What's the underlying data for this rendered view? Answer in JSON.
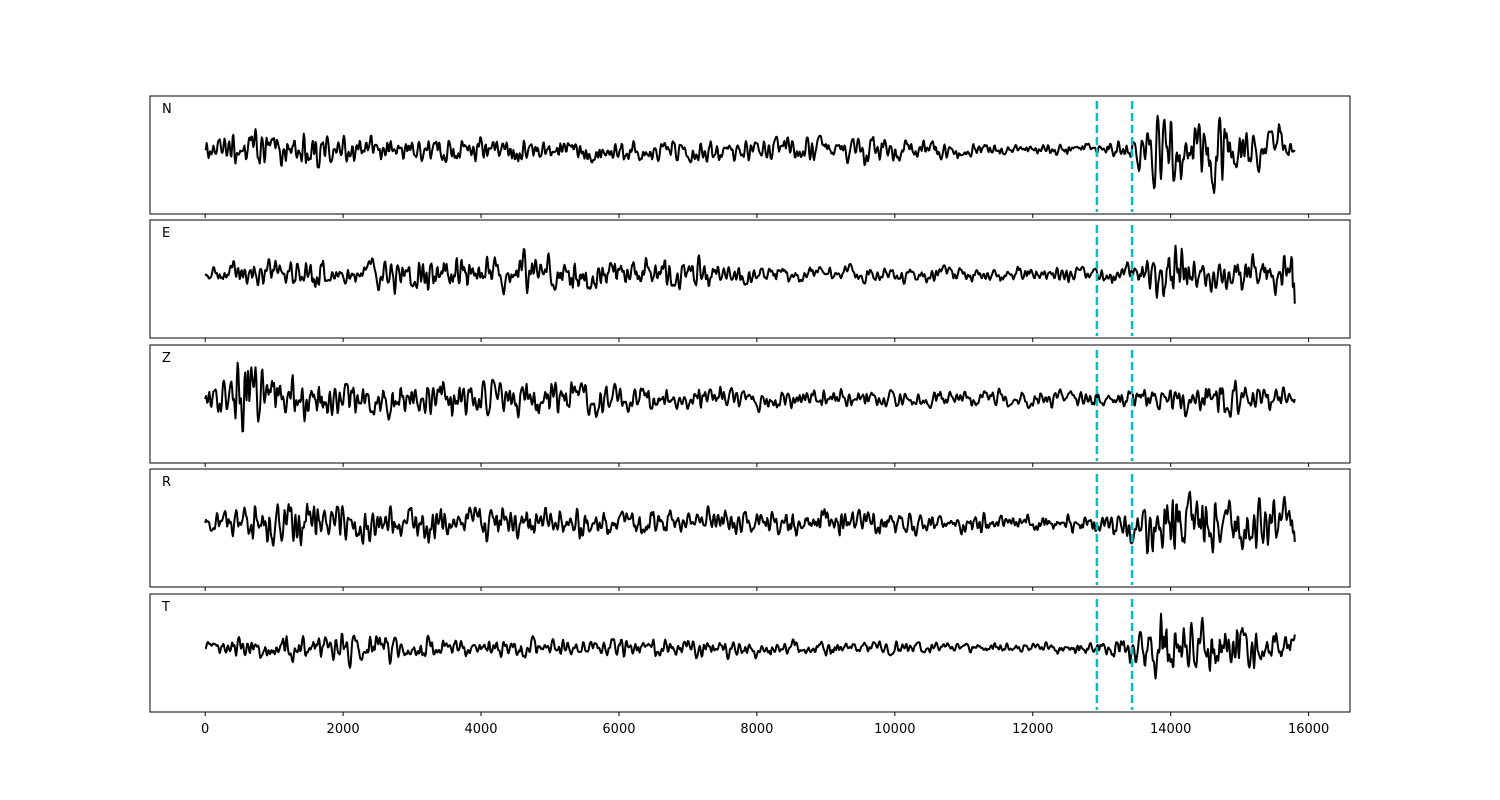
{
  "chart_data": {
    "type": "line",
    "title": "",
    "xlabel": "",
    "ylabel": "",
    "xlim": [
      -800,
      16600
    ],
    "x_ticks": [
      0,
      2000,
      4000,
      6000,
      8000,
      10000,
      12000,
      14000,
      16000
    ],
    "x_tick_labels": [
      "0",
      "2000",
      "4000",
      "6000",
      "8000",
      "10000",
      "12000",
      "14000",
      "16000"
    ],
    "series_x_range": [
      0,
      15800
    ],
    "grid": false,
    "colors": {
      "trace": "#000000",
      "marker": "#00c0c0"
    },
    "vertical_markers": [
      12930,
      13440
    ],
    "panels": [
      {
        "label": "N",
        "envelope": [
          [
            0,
            0.2
          ],
          [
            700,
            0.5
          ],
          [
            1600,
            0.5
          ],
          [
            2100,
            0.3
          ],
          [
            8000,
            0.25
          ],
          [
            9500,
            0.35
          ],
          [
            11000,
            0.2
          ],
          [
            12000,
            0.12
          ],
          [
            12900,
            0.15
          ],
          [
            13400,
            0.25
          ],
          [
            13600,
            0.55
          ],
          [
            13900,
            0.9
          ],
          [
            14300,
            0.55
          ],
          [
            14650,
            0.95
          ],
          [
            15000,
            0.6
          ],
          [
            15600,
            0.5
          ],
          [
            15800,
            0.1
          ]
        ],
        "end_value": 0.0
      },
      {
        "label": "E",
        "envelope": [
          [
            0,
            0.15
          ],
          [
            800,
            0.35
          ],
          [
            2000,
            0.35
          ],
          [
            3100,
            0.5
          ],
          [
            7300,
            0.4
          ],
          [
            8000,
            0.2
          ],
          [
            11000,
            0.2
          ],
          [
            12700,
            0.2
          ],
          [
            13500,
            0.3
          ],
          [
            13900,
            1.0
          ],
          [
            14300,
            0.45
          ],
          [
            14800,
            0.55
          ],
          [
            15200,
            0.5
          ],
          [
            15600,
            0.55
          ],
          [
            15800,
            0.4
          ]
        ],
        "end_value": -0.55
      },
      {
        "label": "Z",
        "envelope": [
          [
            0,
            0.25
          ],
          [
            300,
            0.35
          ],
          [
            550,
            1.0
          ],
          [
            800,
            0.8
          ],
          [
            1500,
            0.5
          ],
          [
            2500,
            0.45
          ],
          [
            5200,
            0.45
          ],
          [
            6000,
            0.3
          ],
          [
            8000,
            0.25
          ],
          [
            11000,
            0.2
          ],
          [
            13500,
            0.2
          ],
          [
            14000,
            0.3
          ],
          [
            14600,
            0.5
          ],
          [
            15200,
            0.35
          ],
          [
            15800,
            0.2
          ]
        ],
        "end_value": 0.0
      },
      {
        "label": "R",
        "envelope": [
          [
            0,
            0.2
          ],
          [
            800,
            0.5
          ],
          [
            1000,
            0.65
          ],
          [
            2000,
            0.5
          ],
          [
            3000,
            0.45
          ],
          [
            8000,
            0.3
          ],
          [
            9500,
            0.35
          ],
          [
            11000,
            0.25
          ],
          [
            12000,
            0.2
          ],
          [
            13000,
            0.25
          ],
          [
            13600,
            0.6
          ],
          [
            13900,
            1.0
          ],
          [
            14300,
            0.7
          ],
          [
            14650,
            0.85
          ],
          [
            15000,
            0.6
          ],
          [
            15500,
            0.8
          ],
          [
            15800,
            0.4
          ]
        ],
        "end_value": -0.35
      },
      {
        "label": "T",
        "envelope": [
          [
            0,
            0.15
          ],
          [
            800,
            0.3
          ],
          [
            1800,
            0.3
          ],
          [
            2100,
            0.4
          ],
          [
            3000,
            0.25
          ],
          [
            8000,
            0.2
          ],
          [
            12000,
            0.1
          ],
          [
            12900,
            0.15
          ],
          [
            13500,
            0.35
          ],
          [
            13900,
            1.0
          ],
          [
            14200,
            0.6
          ],
          [
            14700,
            0.65
          ],
          [
            15200,
            0.5
          ],
          [
            15800,
            0.3
          ]
        ],
        "end_value": 0.25
      }
    ]
  }
}
